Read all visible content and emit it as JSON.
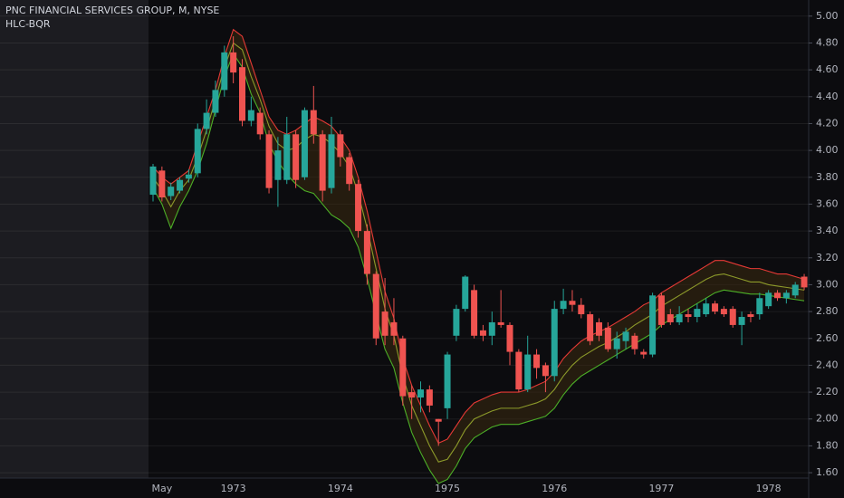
{
  "chart_data": {
    "type": "candlestick",
    "title": "PNC FINANCIAL SERVICES GROUP, M, NYSE",
    "indicator": "HLC-BQR",
    "categories": [
      null,
      "May",
      null,
      null,
      null,
      null,
      null,
      null,
      null,
      "1973",
      null,
      null,
      null,
      null,
      null,
      null,
      null,
      null,
      null,
      null,
      null,
      "1974",
      null,
      null,
      null,
      null,
      null,
      null,
      null,
      null,
      null,
      null,
      null,
      "1975",
      null,
      null,
      null,
      null,
      null,
      null,
      null,
      null,
      null,
      null,
      null,
      "1976",
      null,
      null,
      null,
      null,
      null,
      null,
      null,
      null,
      null,
      null,
      null,
      "1977",
      null,
      null,
      null,
      null,
      null,
      null,
      null,
      null,
      null,
      null,
      null,
      "1978",
      null,
      null,
      null,
      null
    ],
    "open": [
      3.67,
      3.85,
      3.66,
      3.7,
      3.79,
      3.83,
      4.16,
      4.28,
      4.45,
      4.73,
      4.62,
      4.22,
      4.28,
      4.12,
      3.78,
      3.78,
      4.12,
      3.8,
      4.3,
      4.12,
      3.72,
      4.12,
      3.95,
      3.75,
      3.4,
      3.08,
      2.8,
      2.72,
      2.6,
      2.2,
      2.16,
      2.22,
      2.0,
      2.08,
      2.62,
      2.82,
      2.96,
      2.66,
      2.62,
      2.72,
      2.7,
      2.5,
      2.22,
      2.48,
      2.4,
      2.32,
      2.82,
      2.88,
      2.85,
      2.78,
      2.72,
      2.68,
      2.52,
      2.58,
      2.62,
      2.5,
      2.48,
      2.92,
      2.78,
      2.72,
      2.78,
      2.76,
      2.78,
      2.86,
      2.82,
      2.82,
      2.7,
      2.78,
      2.78,
      2.84,
      2.94,
      2.9,
      2.92,
      3.06
    ],
    "high": [
      3.9,
      3.88,
      3.76,
      3.8,
      3.86,
      4.2,
      4.38,
      4.52,
      4.78,
      4.85,
      4.68,
      4.4,
      4.32,
      4.15,
      4.1,
      4.25,
      4.15,
      4.32,
      4.48,
      4.15,
      4.25,
      4.15,
      3.98,
      3.78,
      3.45,
      3.1,
      3.05,
      2.9,
      2.62,
      2.25,
      2.28,
      2.25,
      2.0,
      2.5,
      2.85,
      3.07,
      3.0,
      2.7,
      2.8,
      2.96,
      2.72,
      2.52,
      2.62,
      2.52,
      2.42,
      2.88,
      2.97,
      2.96,
      2.9,
      2.8,
      2.75,
      2.72,
      2.65,
      2.68,
      2.64,
      2.52,
      2.94,
      2.94,
      2.82,
      2.84,
      2.82,
      2.86,
      2.9,
      2.88,
      2.84,
      2.84,
      2.8,
      2.8,
      2.94,
      2.96,
      2.96,
      2.96,
      3.02,
      3.08
    ],
    "low": [
      3.62,
      3.62,
      3.63,
      3.68,
      3.76,
      3.8,
      4.12,
      4.25,
      4.4,
      4.5,
      4.18,
      4.18,
      4.08,
      3.68,
      3.58,
      3.75,
      3.72,
      3.78,
      4.05,
      3.62,
      3.68,
      3.88,
      3.7,
      3.35,
      3.0,
      2.55,
      2.55,
      2.55,
      2.1,
      2.0,
      2.05,
      2.05,
      1.8,
      2.0,
      2.58,
      2.8,
      2.6,
      2.58,
      2.55,
      2.68,
      2.4,
      2.2,
      2.2,
      2.3,
      2.2,
      2.28,
      2.78,
      2.8,
      2.75,
      2.55,
      2.58,
      2.5,
      2.45,
      2.52,
      2.48,
      2.45,
      2.46,
      2.68,
      2.7,
      2.7,
      2.72,
      2.72,
      2.76,
      2.78,
      2.76,
      2.68,
      2.55,
      2.72,
      2.74,
      2.82,
      2.88,
      2.86,
      2.9,
      2.96
    ],
    "close": [
      3.88,
      3.65,
      3.73,
      3.78,
      3.82,
      4.16,
      4.28,
      4.45,
      4.73,
      4.58,
      4.22,
      4.3,
      4.12,
      3.72,
      4.0,
      4.12,
      3.78,
      4.3,
      4.12,
      3.7,
      4.12,
      3.95,
      3.75,
      3.4,
      3.08,
      2.6,
      2.62,
      2.62,
      2.17,
      2.16,
      2.22,
      2.1,
      1.98,
      2.48,
      2.82,
      3.06,
      2.62,
      2.62,
      2.72,
      2.7,
      2.5,
      2.22,
      2.48,
      2.38,
      2.32,
      2.82,
      2.88,
      2.85,
      2.78,
      2.58,
      2.62,
      2.52,
      2.6,
      2.65,
      2.52,
      2.48,
      2.92,
      2.7,
      2.72,
      2.78,
      2.76,
      2.82,
      2.86,
      2.8,
      2.78,
      2.7,
      2.76,
      2.76,
      2.9,
      2.94,
      2.9,
      2.94,
      3.0,
      2.98
    ],
    "up_color": "#26a69a",
    "down_color": "#ef5350",
    "bands": {
      "upper": {
        "color": "#e53935",
        "values": [
          3.88,
          3.8,
          3.75,
          3.8,
          3.85,
          4.05,
          4.25,
          4.45,
          4.7,
          4.9,
          4.85,
          4.65,
          4.45,
          4.25,
          4.15,
          4.12,
          4.15,
          4.2,
          4.25,
          4.22,
          4.18,
          4.1,
          4.0,
          3.8,
          3.55,
          3.25,
          2.95,
          2.75,
          2.45,
          2.25,
          2.1,
          1.95,
          1.82,
          1.85,
          1.95,
          2.05,
          2.12,
          2.15,
          2.18,
          2.2,
          2.2,
          2.2,
          2.22,
          2.25,
          2.28,
          2.35,
          2.45,
          2.52,
          2.58,
          2.62,
          2.65,
          2.68,
          2.72,
          2.76,
          2.8,
          2.85,
          2.88,
          2.94,
          2.98,
          3.02,
          3.06,
          3.1,
          3.14,
          3.18,
          3.18,
          3.16,
          3.14,
          3.12,
          3.12,
          3.1,
          3.08,
          3.08,
          3.06,
          3.04
        ]
      },
      "middle": {
        "color": "#8d9a2a",
        "values": [
          3.8,
          3.7,
          3.58,
          3.7,
          3.78,
          3.95,
          4.15,
          4.38,
          4.62,
          4.8,
          4.75,
          4.55,
          4.38,
          4.18,
          4.05,
          4.0,
          4.02,
          4.08,
          4.12,
          4.1,
          4.05,
          3.98,
          3.88,
          3.68,
          3.42,
          3.12,
          2.82,
          2.62,
          2.32,
          2.1,
          1.95,
          1.8,
          1.68,
          1.7,
          1.8,
          1.92,
          2.0,
          2.03,
          2.06,
          2.08,
          2.08,
          2.08,
          2.1,
          2.12,
          2.15,
          2.22,
          2.32,
          2.4,
          2.46,
          2.5,
          2.54,
          2.57,
          2.61,
          2.65,
          2.7,
          2.74,
          2.78,
          2.84,
          2.88,
          2.92,
          2.96,
          3.0,
          3.04,
          3.07,
          3.08,
          3.06,
          3.04,
          3.02,
          3.02,
          3.0,
          2.99,
          2.98,
          2.97,
          2.96
        ]
      },
      "lower": {
        "color": "#4caf27",
        "values": [
          3.72,
          3.6,
          3.42,
          3.58,
          3.7,
          3.85,
          4.05,
          4.3,
          4.55,
          4.72,
          4.62,
          4.42,
          4.28,
          4.05,
          3.92,
          3.82,
          3.75,
          3.7,
          3.68,
          3.6,
          3.52,
          3.48,
          3.42,
          3.28,
          3.05,
          2.78,
          2.52,
          2.38,
          2.12,
          1.9,
          1.75,
          1.62,
          1.52,
          1.55,
          1.65,
          1.78,
          1.86,
          1.9,
          1.94,
          1.96,
          1.96,
          1.96,
          1.98,
          2.0,
          2.02,
          2.08,
          2.18,
          2.26,
          2.32,
          2.36,
          2.4,
          2.44,
          2.48,
          2.52,
          2.56,
          2.6,
          2.64,
          2.7,
          2.74,
          2.78,
          2.82,
          2.86,
          2.9,
          2.94,
          2.96,
          2.95,
          2.94,
          2.93,
          2.93,
          2.92,
          2.91,
          2.9,
          2.89,
          2.88
        ]
      }
    },
    "band_fill": "#3a2a10",
    "ylim": [
      1.56,
      5.12
    ],
    "yticks": [
      {
        "value": 1.6,
        "label": "1.60"
      },
      {
        "value": 1.8,
        "label": "1.80"
      },
      {
        "value": 2,
        "label": "2.00"
      },
      {
        "value": 2.2,
        "label": "2.20"
      },
      {
        "value": 2.4,
        "label": "2.40"
      },
      {
        "value": 2.6,
        "label": "2.60"
      },
      {
        "value": 2.8,
        "label": "2.80"
      },
      {
        "value": 3,
        "label": "3.00"
      },
      {
        "value": 3.2,
        "label": "3.20"
      },
      {
        "value": 3.4,
        "label": "3.40"
      },
      {
        "value": 3.6,
        "label": "3.60"
      },
      {
        "value": 3.8,
        "label": "3.80"
      },
      {
        "value": 4,
        "label": "4.00"
      },
      {
        "value": 4.2,
        "label": "4.20"
      },
      {
        "value": 4.4,
        "label": "4.40"
      },
      {
        "value": 4.6,
        "label": "4.60"
      },
      {
        "value": 4.8,
        "label": "4.80"
      },
      {
        "value": 5,
        "label": "5.00"
      }
    ],
    "grid": true
  }
}
